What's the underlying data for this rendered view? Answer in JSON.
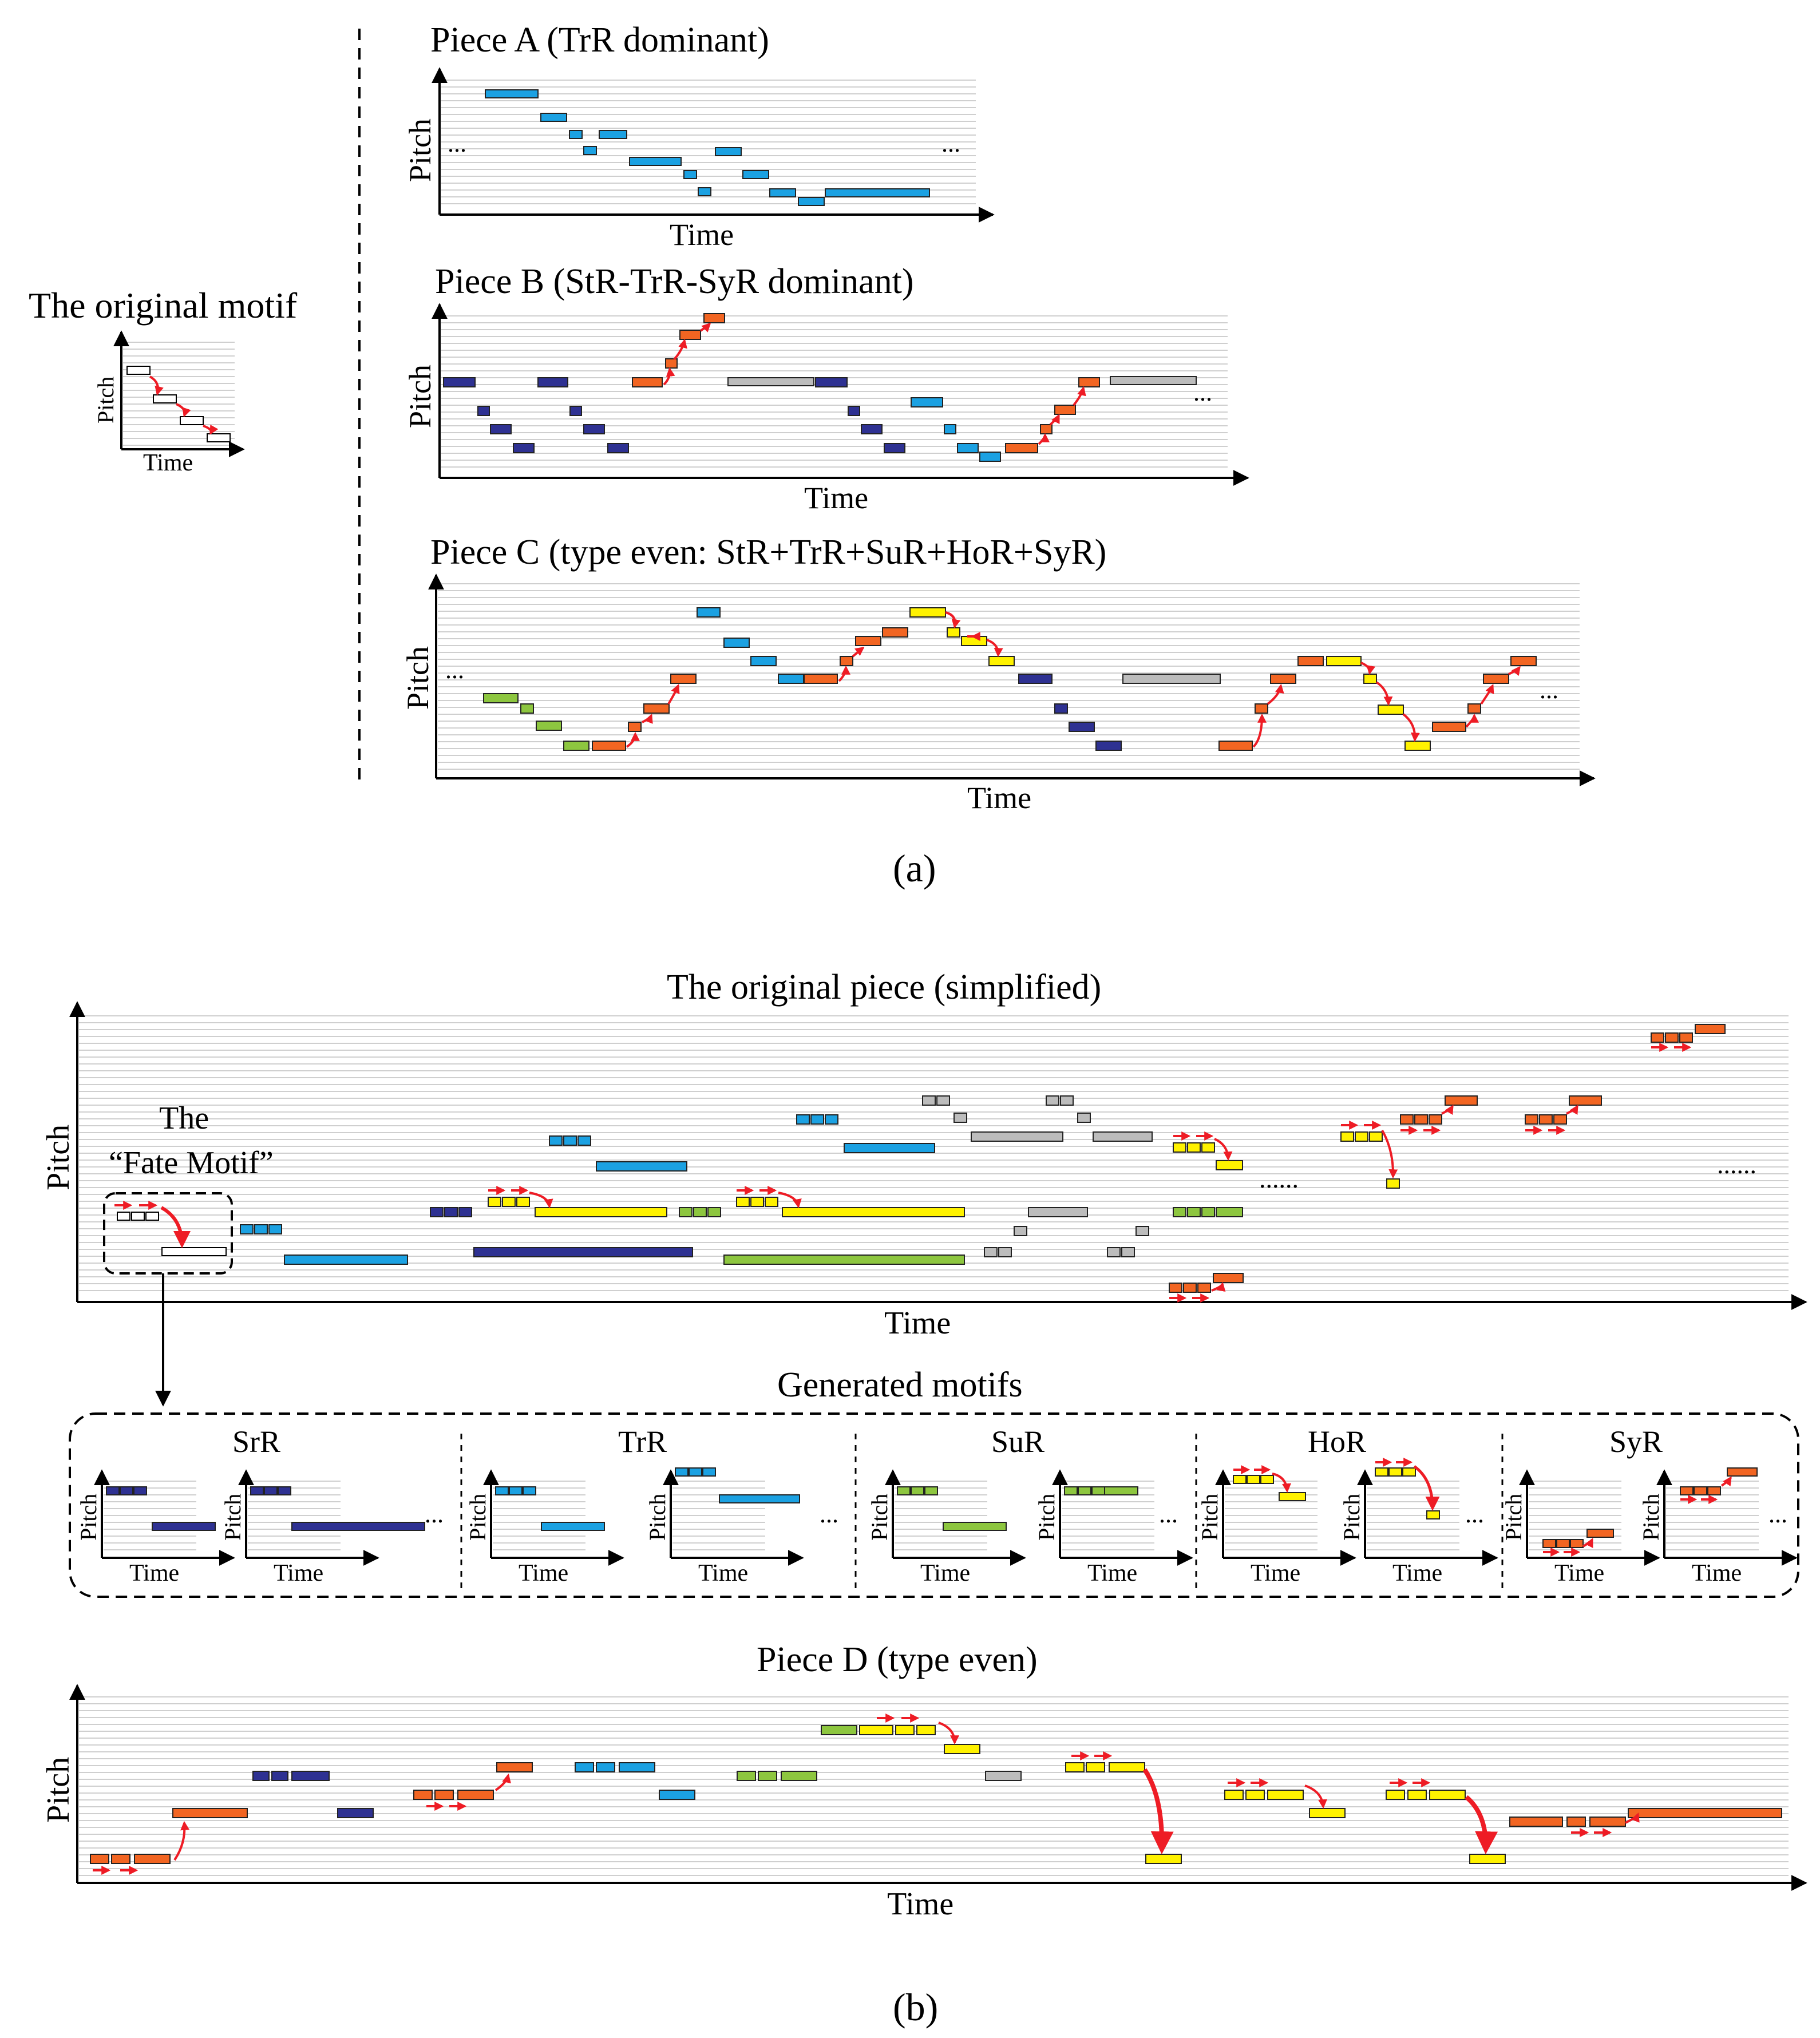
{
  "panel_a": {
    "original_motif": {
      "title": "The original motif",
      "ylabel": "Pitch",
      "xlabel": "Time"
    },
    "pieces": [
      {
        "title": "Piece A (TrR dominant)",
        "ylabel": "Pitch",
        "xlabel": "Time",
        "ellipsis": "..."
      },
      {
        "title": "Piece B (StR-TrR-SyR dominant)",
        "ylabel": "Pitch",
        "xlabel": "Time",
        "ellipsis": "..."
      },
      {
        "title": "Piece C (type even: StR+TrR+SuR+HoR+SyR)",
        "ylabel": "Pitch",
        "xlabel": "Time",
        "ellipsis": "..."
      }
    ],
    "caption": "(a)"
  },
  "panel_b": {
    "original_piece": {
      "title": "The original piece (simplified)",
      "ylabel": "Pitch",
      "xlabel": "Time",
      "fate_line1": "The",
      "fate_line2": "“Fate Motif”",
      "ellipsis_mid": "......",
      "ellipsis_end": "......"
    },
    "generated": {
      "title": "Generated motifs",
      "groups": [
        {
          "label": "SrR"
        },
        {
          "label": "TrR"
        },
        {
          "label": "SuR"
        },
        {
          "label": "HoR"
        },
        {
          "label": "SyR"
        }
      ],
      "ylabel": "Pitch",
      "xlabel": "Time",
      "ellipsis": "..."
    },
    "piece_d": {
      "title": "Piece D (type even)",
      "ylabel": "Pitch",
      "xlabel": "Time"
    },
    "caption": "(b)"
  },
  "colors": {
    "StR": "#2e3192",
    "TrR": "#1ba1e2",
    "SuR": "#8dc63f",
    "HoR": "#fff200",
    "SyR": "#f26522",
    "neutral": "#bcbcbc",
    "arrow": "#ee1c25",
    "grid": "#cfcfcf"
  }
}
